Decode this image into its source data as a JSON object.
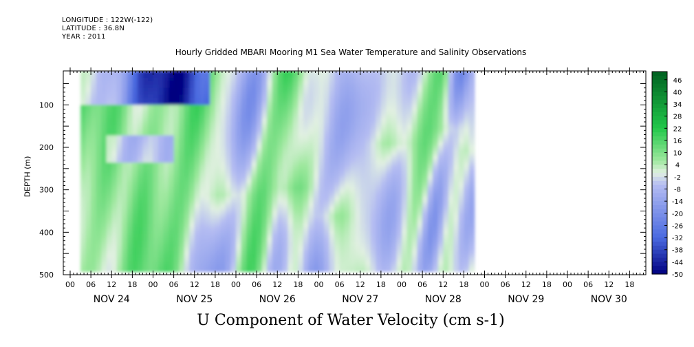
{
  "header": {
    "longitude": "LONGITUDE : 122W(-122)",
    "latitude": "LATITUDE : 36.8N",
    "year": "YEAR : 2011"
  },
  "chart_data": {
    "type": "heatmap",
    "title": "Hourly Gridded MBARI Mooring M1 Sea Water Temperature and Salinity Observations",
    "xlabel": "U Component of Water Velocity (cm s-1)",
    "ylabel": "DEPTH (m)",
    "y_range": [
      500,
      20
    ],
    "y_axis_inverted": true,
    "y_ticks": [
      100,
      200,
      300,
      400,
      500
    ],
    "x_range_hours": [
      0,
      168
    ],
    "hour_tick_labels": [
      "00",
      "06",
      "12",
      "18"
    ],
    "day_labels": [
      "NOV 24",
      "NOV 25",
      "NOV 26",
      "NOV 27",
      "NOV 28",
      "NOV 29",
      "NOV 30"
    ],
    "data_extent": {
      "start": "NOV 24 03:00",
      "end": "NOV 28 20:00",
      "depth_top": 20,
      "depth_bottom": 485
    },
    "colorbar_labels": [
      "46",
      "40",
      "34",
      "28",
      "22",
      "16",
      "10",
      "4",
      "-2",
      "-8",
      "-14",
      "-20",
      "-26",
      "-32",
      "-38",
      "-44",
      "-50"
    ],
    "colorbar_range": [
      -50,
      50
    ],
    "colormap": "blue-white-green",
    "colors": {
      "negative_strong": "#000080",
      "negative_mid": "#4a6ae0",
      "negative_light": "#b4bcf2",
      "positive_light": "#9ee89e",
      "positive_mid": "#22c84a",
      "positive_strong": "#006020"
    }
  }
}
